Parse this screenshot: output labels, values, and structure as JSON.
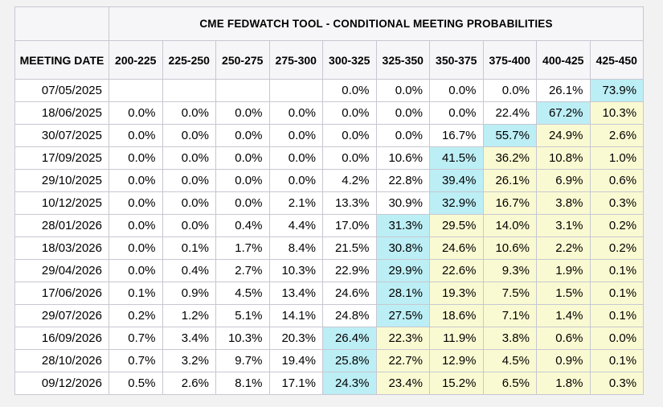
{
  "colors": {
    "row_max_highlight": "#bceef5",
    "right_of_max_highlight": "#fafad2",
    "header_background": "#f6f6f8",
    "grid_line": "#c7c7d1",
    "page_background": "#f2f2f3"
  },
  "chart_data": {
    "type": "table",
    "title": "CME FEDWATCH TOOL - CONDITIONAL MEETING PROBABILITIES",
    "columns": [
      "MEETING DATE",
      "200-225",
      "225-250",
      "250-275",
      "275-300",
      "300-325",
      "325-350",
      "350-375",
      "375-400",
      "400-425",
      "425-450"
    ],
    "highlight_rule": "cyan = highest probability in row, yellow = cells right of the highest",
    "rows": [
      {
        "date": "07/05/2025",
        "values": [
          "",
          "",
          "",
          "",
          "0.0%",
          "0.0%",
          "0.0%",
          "0.0%",
          "26.1%",
          "73.9%"
        ]
      },
      {
        "date": "18/06/2025",
        "values": [
          "0.0%",
          "0.0%",
          "0.0%",
          "0.0%",
          "0.0%",
          "0.0%",
          "0.0%",
          "22.4%",
          "67.2%",
          "10.3%"
        ]
      },
      {
        "date": "30/07/2025",
        "values": [
          "0.0%",
          "0.0%",
          "0.0%",
          "0.0%",
          "0.0%",
          "0.0%",
          "16.7%",
          "55.7%",
          "24.9%",
          "2.6%"
        ]
      },
      {
        "date": "17/09/2025",
        "values": [
          "0.0%",
          "0.0%",
          "0.0%",
          "0.0%",
          "0.0%",
          "10.6%",
          "41.5%",
          "36.2%",
          "10.8%",
          "1.0%"
        ]
      },
      {
        "date": "29/10/2025",
        "values": [
          "0.0%",
          "0.0%",
          "0.0%",
          "0.0%",
          "4.2%",
          "22.8%",
          "39.4%",
          "26.1%",
          "6.9%",
          "0.6%"
        ]
      },
      {
        "date": "10/12/2025",
        "values": [
          "0.0%",
          "0.0%",
          "0.0%",
          "2.1%",
          "13.3%",
          "30.9%",
          "32.9%",
          "16.7%",
          "3.8%",
          "0.3%"
        ]
      },
      {
        "date": "28/01/2026",
        "values": [
          "0.0%",
          "0.0%",
          "0.4%",
          "4.4%",
          "17.0%",
          "31.3%",
          "29.5%",
          "14.0%",
          "3.1%",
          "0.2%"
        ]
      },
      {
        "date": "18/03/2026",
        "values": [
          "0.0%",
          "0.1%",
          "1.7%",
          "8.4%",
          "21.5%",
          "30.8%",
          "24.6%",
          "10.6%",
          "2.2%",
          "0.2%"
        ]
      },
      {
        "date": "29/04/2026",
        "values": [
          "0.0%",
          "0.4%",
          "2.7%",
          "10.3%",
          "22.9%",
          "29.9%",
          "22.6%",
          "9.3%",
          "1.9%",
          "0.1%"
        ]
      },
      {
        "date": "17/06/2026",
        "values": [
          "0.1%",
          "0.9%",
          "4.5%",
          "13.4%",
          "24.6%",
          "28.1%",
          "19.3%",
          "7.5%",
          "1.5%",
          "0.1%"
        ]
      },
      {
        "date": "29/07/2026",
        "values": [
          "0.2%",
          "1.2%",
          "5.1%",
          "14.1%",
          "24.8%",
          "27.5%",
          "18.6%",
          "7.1%",
          "1.4%",
          "0.1%"
        ]
      },
      {
        "date": "16/09/2026",
        "values": [
          "0.7%",
          "3.4%",
          "10.3%",
          "20.3%",
          "26.4%",
          "22.3%",
          "11.9%",
          "3.8%",
          "0.6%",
          "0.0%"
        ]
      },
      {
        "date": "28/10/2026",
        "values": [
          "0.7%",
          "3.2%",
          "9.7%",
          "19.4%",
          "25.8%",
          "22.7%",
          "12.9%",
          "4.5%",
          "0.9%",
          "0.1%"
        ]
      },
      {
        "date": "09/12/2026",
        "values": [
          "0.5%",
          "2.6%",
          "8.1%",
          "17.1%",
          "24.3%",
          "23.4%",
          "15.2%",
          "6.5%",
          "1.8%",
          "0.3%"
        ]
      }
    ]
  }
}
